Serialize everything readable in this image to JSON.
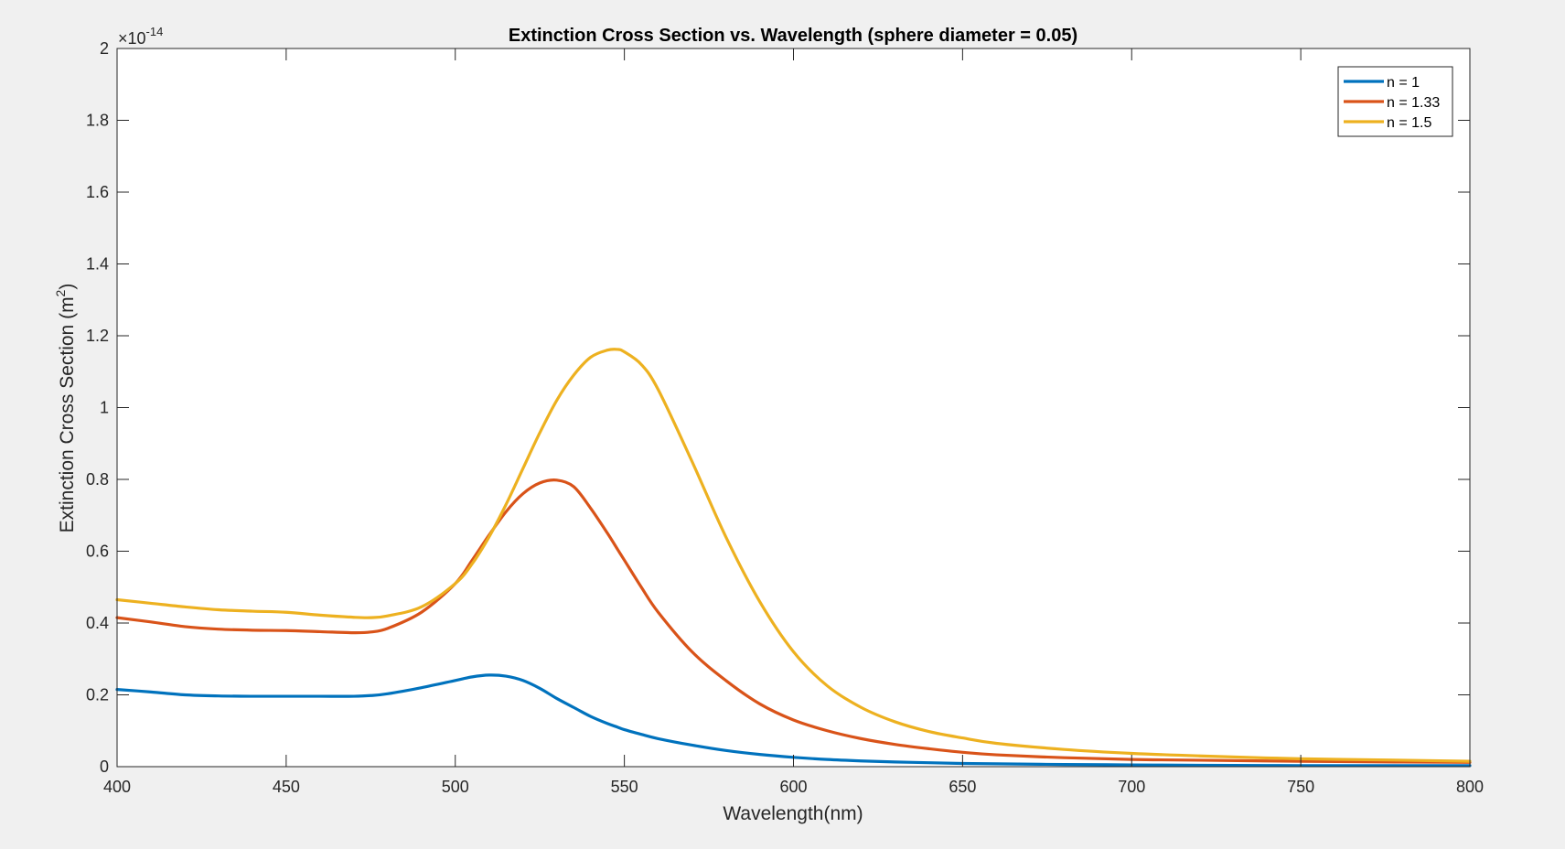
{
  "chart_data": {
    "type": "line",
    "title": "Extinction Cross Section vs. Wavelength (sphere diameter = 0.05)",
    "xlabel": "Wavelength(nm)",
    "ylabel_text": "Extinction Cross Section (m",
    "ylabel_sup": "2",
    "ylabel_end": ")",
    "exponent_base": "×10",
    "exponent_power": "-14",
    "xlim": [
      400,
      800
    ],
    "ylim": [
      0,
      2
    ],
    "xticks": [
      400,
      450,
      500,
      550,
      600,
      650,
      700,
      750,
      800
    ],
    "yticks": [
      0,
      0.2,
      0.4,
      0.6,
      0.8,
      1,
      1.2,
      1.4,
      1.6,
      1.8,
      2
    ],
    "ytick_labels": [
      "0",
      "0.2",
      "0.4",
      "0.6",
      "0.8",
      "1",
      "1.2",
      "1.4",
      "1.6",
      "1.8",
      "2"
    ],
    "grid": false,
    "legend_position": "top-right",
    "x": [
      400,
      410,
      420,
      430,
      440,
      450,
      460,
      470,
      475,
      480,
      490,
      500,
      505,
      510,
      515,
      520,
      525,
      530,
      535,
      540,
      545,
      548,
      550,
      555,
      560,
      570,
      580,
      590,
      600,
      610,
      620,
      630,
      640,
      650,
      660,
      680,
      700,
      720,
      750,
      780,
      800
    ],
    "series": [
      {
        "name": "n = 1",
        "color": "#0072BD",
        "values": [
          0.215,
          0.208,
          0.2,
          0.197,
          0.196,
          0.196,
          0.196,
          0.196,
          0.198,
          0.203,
          0.22,
          0.24,
          0.25,
          0.255,
          0.252,
          0.24,
          0.218,
          0.19,
          0.165,
          0.14,
          0.12,
          0.11,
          0.103,
          0.09,
          0.078,
          0.06,
          0.045,
          0.034,
          0.026,
          0.02,
          0.016,
          0.013,
          0.011,
          0.009,
          0.008,
          0.006,
          0.005,
          0.004,
          0.003,
          0.003,
          0.003
        ]
      },
      {
        "name": "n = 1.33",
        "color": "#D95319",
        "values": [
          0.415,
          0.403,
          0.39,
          0.383,
          0.38,
          0.379,
          0.376,
          0.373,
          0.375,
          0.385,
          0.43,
          0.51,
          0.575,
          0.645,
          0.71,
          0.76,
          0.79,
          0.798,
          0.78,
          0.72,
          0.65,
          0.605,
          0.575,
          0.5,
          0.43,
          0.32,
          0.24,
          0.175,
          0.13,
          0.1,
          0.078,
          0.062,
          0.05,
          0.04,
          0.033,
          0.025,
          0.02,
          0.018,
          0.015,
          0.013,
          0.012
        ]
      },
      {
        "name": "n = 1.5",
        "color": "#EDB120",
        "values": [
          0.465,
          0.455,
          0.445,
          0.437,
          0.433,
          0.43,
          0.422,
          0.416,
          0.415,
          0.42,
          0.445,
          0.51,
          0.565,
          0.64,
          0.73,
          0.83,
          0.93,
          1.02,
          1.09,
          1.14,
          1.16,
          1.162,
          1.155,
          1.12,
          1.05,
          0.85,
          0.64,
          0.46,
          0.32,
          0.225,
          0.165,
          0.125,
          0.098,
          0.08,
          0.065,
          0.048,
          0.037,
          0.03,
          0.022,
          0.018,
          0.015
        ]
      }
    ]
  }
}
